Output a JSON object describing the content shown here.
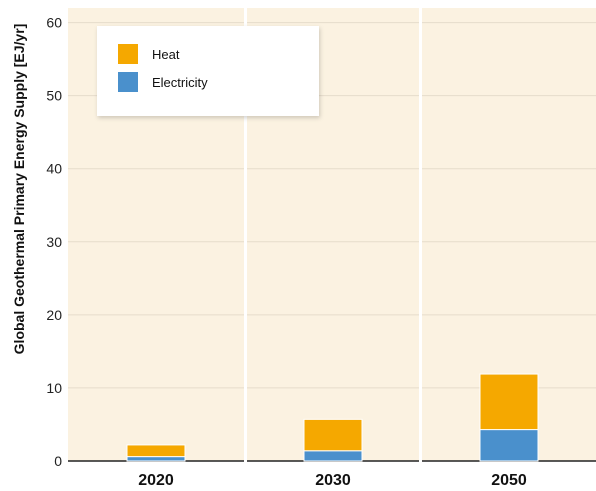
{
  "chart_data": {
    "type": "bar",
    "stacked": true,
    "categories": [
      "2020",
      "2030",
      "2050"
    ],
    "series": [
      {
        "name": "Electricity",
        "values": [
          0.6,
          1.4,
          4.3
        ],
        "color": "#4a90cc"
      },
      {
        "name": "Heat",
        "values": [
          1.6,
          4.3,
          7.6
        ],
        "color": "#f5a800"
      }
    ],
    "ylabel": "Global Geothermal Primary Energy Supply [EJ/yr]",
    "xlabel": "",
    "ylim": [
      0,
      62
    ],
    "yticks": [
      0,
      10,
      20,
      30,
      40,
      50,
      60
    ],
    "grid": true,
    "legend_position": "top-left",
    "colors": {
      "panel_background": "#fbf2e1",
      "grid": "#e6dccb",
      "divider": "#ffffff"
    }
  }
}
